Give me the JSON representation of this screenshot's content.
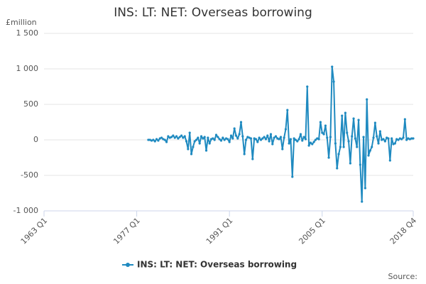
{
  "chart_data": {
    "type": "line",
    "title": "INS: LT: NET: Overseas borrowing",
    "y_label": "£million",
    "source": "Source:",
    "categories": [
      "1963 Q1",
      null,
      null,
      null,
      null,
      null,
      null,
      null,
      null,
      null,
      null,
      null,
      null,
      null,
      null,
      null,
      null,
      null,
      null,
      null,
      null,
      null,
      null,
      null,
      null,
      null,
      null,
      null,
      null,
      null,
      null,
      null,
      null,
      null,
      null,
      null,
      null,
      null,
      null,
      null,
      null,
      null,
      null,
      null,
      null,
      null,
      null,
      null,
      null,
      null,
      null,
      null,
      null,
      null,
      null,
      null,
      "1977 Q1",
      null,
      null,
      null,
      null,
      null,
      null,
      null,
      null,
      null,
      null,
      null,
      null,
      null,
      null,
      null,
      null,
      null,
      null,
      null,
      null,
      null,
      null,
      null,
      null,
      null,
      null,
      null,
      null,
      null,
      null,
      null,
      null,
      null,
      null,
      null,
      null,
      null,
      null,
      null,
      null,
      null,
      null,
      null,
      null,
      null,
      null,
      null,
      null,
      null,
      null,
      null,
      null,
      null,
      null,
      null,
      "1991 Q1",
      null,
      null,
      null,
      null,
      null,
      null,
      null,
      null,
      null,
      null,
      null,
      null,
      null,
      null,
      null,
      null,
      null,
      null,
      null,
      null,
      null,
      null,
      null,
      null,
      null,
      null,
      null,
      null,
      null,
      null,
      null,
      null,
      null,
      null,
      null,
      null,
      null,
      null,
      null,
      null,
      null,
      null,
      null,
      null,
      null,
      null,
      null,
      null,
      null,
      null,
      null,
      null,
      null,
      null,
      null,
      "2005 Q1",
      null,
      null,
      null,
      null,
      null,
      null,
      null,
      null,
      null,
      null,
      null,
      null,
      null,
      null,
      null,
      null,
      null,
      null,
      null,
      null,
      null,
      null,
      null,
      null,
      null,
      null,
      null,
      null,
      null,
      null,
      null,
      null,
      null,
      null,
      null,
      null,
      null,
      null,
      null,
      null,
      null,
      null,
      null,
      null,
      null,
      null,
      null,
      null,
      null,
      null,
      null,
      null,
      null,
      null,
      "2018 Q4"
    ],
    "series": [
      {
        "name": "INS: LT: NET: Overseas borrowing",
        "color": "#1f8ac0",
        "values": [
          null,
          null,
          null,
          null,
          null,
          null,
          null,
          null,
          null,
          null,
          null,
          null,
          null,
          null,
          null,
          null,
          null,
          null,
          null,
          null,
          null,
          null,
          null,
          null,
          null,
          null,
          null,
          null,
          null,
          null,
          null,
          null,
          null,
          null,
          null,
          null,
          null,
          null,
          null,
          null,
          null,
          null,
          null,
          null,
          null,
          null,
          null,
          null,
          null,
          null,
          null,
          null,
          null,
          null,
          null,
          null,
          null,
          null,
          null,
          null,
          null,
          null,
          null,
          0,
          0,
          -10,
          0,
          -20,
          10,
          -10,
          20,
          30,
          10,
          0,
          -30,
          50,
          30,
          40,
          60,
          30,
          50,
          20,
          40,
          60,
          30,
          50,
          -20,
          -130,
          100,
          -200,
          -100,
          -20,
          0,
          30,
          -50,
          50,
          20,
          40,
          -150,
          30,
          -50,
          10,
          20,
          0,
          70,
          40,
          10,
          -10,
          30,
          0,
          20,
          10,
          -30,
          60,
          20,
          160,
          60,
          20,
          80,
          250,
          50,
          -200,
          0,
          40,
          30,
          20,
          -270,
          20,
          10,
          -30,
          30,
          0,
          20,
          40,
          10,
          60,
          -20,
          80,
          -60,
          30,
          50,
          20,
          10,
          40,
          -130,
          30,
          150,
          420,
          -50,
          10,
          -520,
          20,
          0,
          -20,
          10,
          80,
          -10,
          40,
          10,
          750,
          -80,
          -40,
          -60,
          -30,
          0,
          20,
          10,
          250,
          100,
          80,
          200,
          30,
          -250,
          40,
          1030,
          820,
          -50,
          -400,
          -200,
          -100,
          340,
          -100,
          380,
          100,
          -20,
          -330,
          50,
          300,
          20,
          -100,
          280,
          -350,
          -870,
          40,
          -680,
          570,
          -220,
          -150,
          -100,
          30,
          240,
          50,
          -50,
          120,
          0,
          10,
          -20,
          30,
          20,
          -290,
          20,
          -60,
          -50,
          10,
          0,
          20,
          10,
          30,
          290,
          0,
          20,
          10,
          20,
          20
        ]
      }
    ],
    "ylim": [
      -1000,
      1500
    ],
    "yticks": [
      {
        "value": -1000,
        "label": "-1 000"
      },
      -500,
      0,
      500,
      {
        "value": 1000,
        "label": "1 000"
      },
      {
        "value": 1500,
        "label": "1 500"
      }
    ],
    "grid": true,
    "legend": "bottom"
  }
}
